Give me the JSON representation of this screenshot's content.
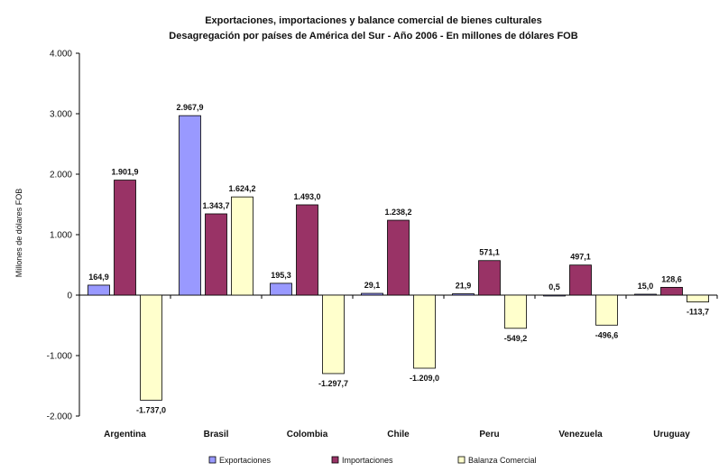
{
  "chart_data": {
    "type": "bar",
    "title": "Exportaciones, importaciones y balance comercial de bienes culturales",
    "subtitle": "Desagregación por países de América del Sur - Año 2006 - En millones de dólares FOB",
    "ylabel": "Millones de dólares FOB",
    "xlabel": "",
    "ylim": [
      -2000,
      4000
    ],
    "yticks": [
      4000,
      3000,
      2000,
      1000,
      0,
      -1000,
      -2000
    ],
    "ytick_labels": [
      "4.000",
      "3.000",
      "2.000",
      "1.000",
      "0",
      "-1.000",
      "-2.000"
    ],
    "grid": false,
    "legend_position": "bottom",
    "categories": [
      "Argentina",
      "Brasil",
      "Colombia",
      "Chile",
      "Peru",
      "Venezuela",
      "Uruguay"
    ],
    "series": [
      {
        "name": "Exportaciones",
        "color": "#9999ff",
        "values": [
          164.9,
          2967.9,
          195.3,
          29.1,
          21.9,
          0.5,
          15.0
        ],
        "labels": [
          "164,9",
          "2.967,9",
          "195,3",
          "29,1",
          "21,9",
          "0,5",
          "15,0"
        ]
      },
      {
        "name": "Importaciones",
        "color": "#993366",
        "values": [
          1901.9,
          1343.7,
          1493.0,
          1238.2,
          571.1,
          497.1,
          128.6
        ],
        "labels": [
          "1.901,9",
          "1.343,7",
          "1.493,0",
          "1.238,2",
          "571,1",
          "497,1",
          "128,6"
        ]
      },
      {
        "name": "Balanza Comercial",
        "color": "#ffffcc",
        "values": [
          -1737.0,
          1624.2,
          -1297.7,
          -1209.0,
          -549.2,
          -496.6,
          -113.7
        ],
        "labels": [
          "-1.737,0",
          "1.624,2",
          "-1.297,7",
          "-1.209,0",
          "-549,2",
          "-496,6",
          "-113,7"
        ]
      }
    ]
  }
}
